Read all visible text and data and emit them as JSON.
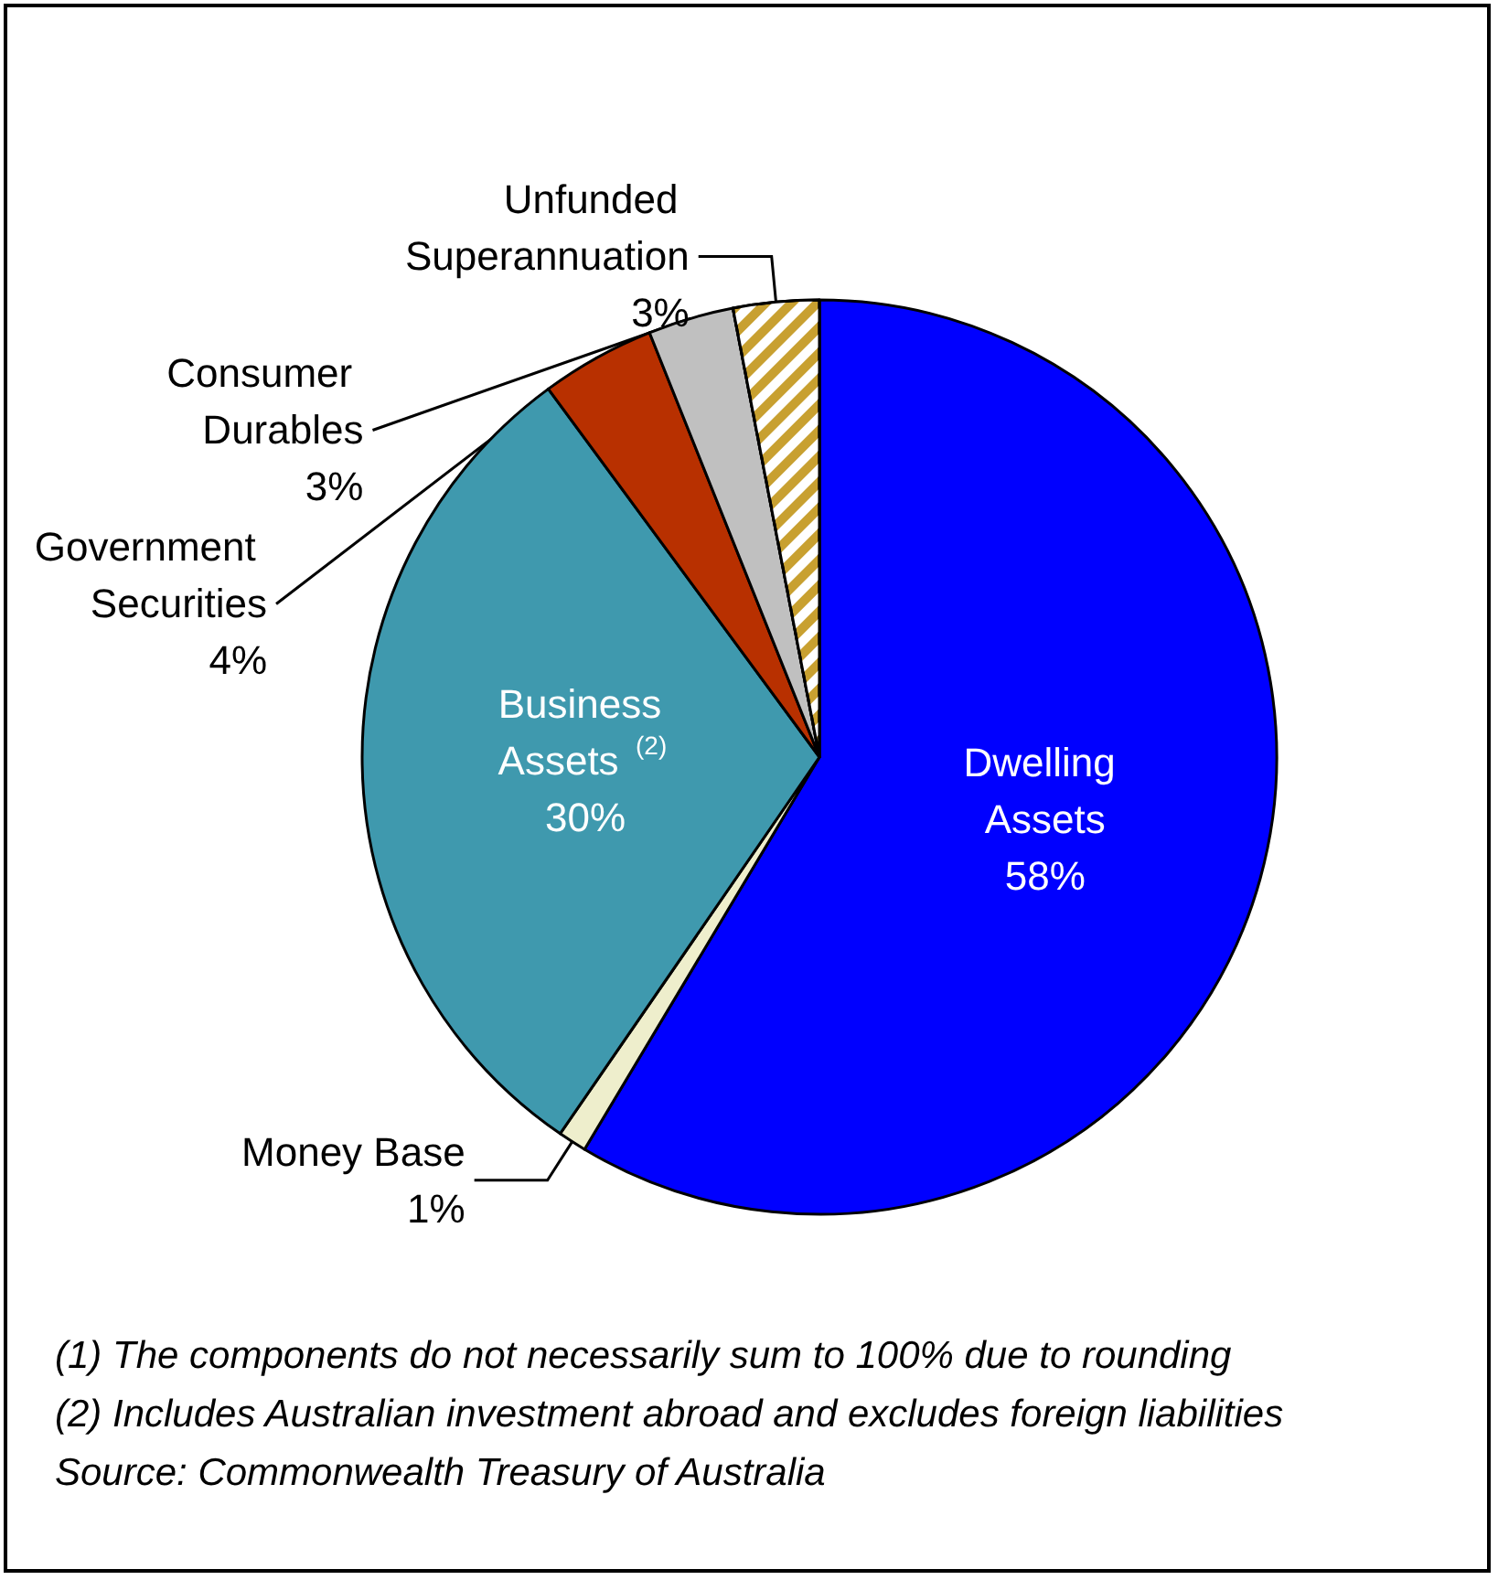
{
  "chart_data": {
    "type": "pie",
    "categories": [
      "Dwelling Assets",
      "Money Base",
      "Business Assets $^{(2)}$",
      "Government Securities",
      "Consumer Durables",
      "Unfunded Superannuation"
    ],
    "values": [
      58,
      1,
      30,
      4,
      3,
      3
    ],
    "value_labels": [
      "58%",
      "1%",
      "30%",
      "4%",
      "3%",
      "3%"
    ],
    "colors": [
      "#0000ff",
      "#eeeecc",
      "#3f99ae",
      "#b83000",
      "#c0c0c0",
      "#c8a030"
    ],
    "annotations": [
      "(1)  The components do not necessarily sum to 100% due to rounding",
      "(2)  Includes Australian investment abroad and excludes foreign liabilities",
      "Source:  Commonwealth Treasury of Australia"
    ],
    "legend": false
  }
}
